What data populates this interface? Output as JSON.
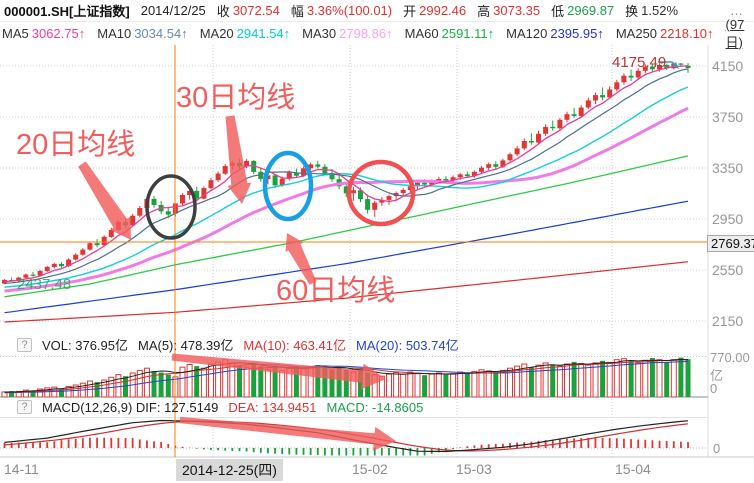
{
  "header": {
    "symbol": "000001.SH[上证指数]",
    "date": "2014/12/25",
    "fields": [
      {
        "label": "收",
        "value": "3072.54",
        "color": "#e03232"
      },
      {
        "label": "幅",
        "value": "3.36%(100.01)",
        "color": "#e03232"
      },
      {
        "label": "开",
        "value": "2992.46",
        "color": "#e03232"
      },
      {
        "label": "高",
        "value": "3073.35",
        "color": "#e03232"
      },
      {
        "label": "低",
        "value": "2969.87",
        "color": "#1ca04a"
      },
      {
        "label": "换",
        "value": "1.52%",
        "color": "#333333"
      }
    ],
    "more": "…"
  },
  "ma_bar": {
    "items": [
      {
        "label": "MA5",
        "value": "3062.75",
        "arrow": "↑",
        "color": "#f03ca0"
      },
      {
        "label": "MA10",
        "value": "3034.54",
        "arrow": "↑",
        "color": "#6b88ad"
      },
      {
        "label": "MA20",
        "value": "2941.54",
        "arrow": "↑",
        "color": "#00cdd4"
      },
      {
        "label": "MA30",
        "value": "2798.86",
        "arrow": "↑",
        "color": "#f8a2ef"
      },
      {
        "label": "MA60",
        "value": "2591.11",
        "arrow": "↑",
        "color": "#16b53c"
      },
      {
        "label": "MA120",
        "value": "2395.95",
        "arrow": "↑",
        "color": "#2431d8"
      },
      {
        "label": "MA250",
        "value": "2218.10",
        "arrow": "↑",
        "color": "#e43030"
      }
    ],
    "period": "(97日)"
  },
  "annotations": {
    "ma20_note": "20日均线",
    "ma30_note": "30日均线",
    "ma60_note": "60日均线",
    "peak_label": "4175.49",
    "low_label": "2437.48",
    "crosshair_price": "2769.37"
  },
  "volume_pane": {
    "help": "?",
    "segments": [
      {
        "text": "VOL: 376.95亿",
        "color": "#222222"
      },
      {
        "text": "MA(5): 478.39亿",
        "color": "#222222"
      },
      {
        "text": "MA(10): 463.41亿",
        "color": "#e03232"
      },
      {
        "text": "MA(20): 503.74亿",
        "color": "#2244cc"
      }
    ],
    "axis_max": "770.00亿",
    "axis_min": "0"
  },
  "macd_pane": {
    "help": "?",
    "segments": [
      {
        "text": "MACD(12,26,9) DIF: 127.5149",
        "color": "#222222"
      },
      {
        "text": "DEA: 134.9451",
        "color": "#e03232"
      },
      {
        "text": "MACD: -14.8605",
        "color": "#1ca04a"
      }
    ],
    "axis_zero": "0"
  },
  "x_axis": {
    "labels": [
      "14-11",
      "2014-12-25(四)",
      "15-02",
      "15-03",
      "15-04"
    ],
    "highlight_index": 1
  },
  "chart_data": {
    "type": "candlestick",
    "ylim": [
      2150,
      4150
    ],
    "y_ticks": [
      4150,
      3750,
      3350,
      2950,
      2550,
      2150
    ],
    "x_labels": [
      "14-11",
      "2014-12-25(四)",
      "15-02",
      "15-03",
      "15-04"
    ],
    "visible_bars": 97,
    "crosshair": {
      "date": "2014-12-25",
      "price_level": 2769.37,
      "bar_index": 24
    },
    "high_label": {
      "value": 4175.49,
      "bar_index": 94
    },
    "low_label": {
      "value": 2437.48,
      "bar_index": 0
    },
    "candles": [
      [
        2443,
        2478,
        2437.48,
        2472
      ],
      [
        2472,
        2492,
        2458,
        2464
      ],
      [
        2464,
        2498,
        2456,
        2490
      ],
      [
        2490,
        2522,
        2482,
        2514
      ],
      [
        2514,
        2536,
        2498,
        2506
      ],
      [
        2506,
        2550,
        2500,
        2542
      ],
      [
        2542,
        2582,
        2534,
        2574
      ],
      [
        2574,
        2606,
        2562,
        2598
      ],
      [
        2598,
        2612,
        2566,
        2580
      ],
      [
        2580,
        2642,
        2574,
        2632
      ],
      [
        2632,
        2682,
        2624,
        2670
      ],
      [
        2670,
        2722,
        2662,
        2710
      ],
      [
        2710,
        2772,
        2702,
        2760
      ],
      [
        2760,
        2792,
        2728,
        2744
      ],
      [
        2744,
        2822,
        2738,
        2810
      ],
      [
        2810,
        2882,
        2802,
        2864
      ],
      [
        2864,
        2942,
        2858,
        2926
      ],
      [
        2926,
        2952,
        2878,
        2900
      ],
      [
        2900,
        2992,
        2894,
        2976
      ],
      [
        2976,
        3052,
        2962,
        3036
      ],
      [
        3036,
        3122,
        3026,
        3108
      ],
      [
        3108,
        3132,
        3038,
        3060
      ],
      [
        3060,
        3092,
        2988,
        3010
      ],
      [
        3010,
        3042,
        2958,
        2984
      ],
      [
        2992.46,
        3073.35,
        2969.87,
        3072.54
      ],
      [
        3072,
        3152,
        3058,
        3138
      ],
      [
        3138,
        3192,
        3102,
        3170
      ],
      [
        3170,
        3202,
        3088,
        3110
      ],
      [
        3110,
        3206,
        3104,
        3192
      ],
      [
        3192,
        3272,
        3182,
        3254
      ],
      [
        3254,
        3322,
        3242,
        3306
      ],
      [
        3306,
        3382,
        3296,
        3366
      ],
      [
        3366,
        3406,
        3332,
        3392
      ],
      [
        3392,
        3422,
        3342,
        3362
      ],
      [
        3362,
        3420,
        3350,
        3406
      ],
      [
        3406,
        3412,
        3302,
        3320
      ],
      [
        3320,
        3352,
        3242,
        3264
      ],
      [
        3264,
        3312,
        3222,
        3292
      ],
      [
        3292,
        3302,
        3192,
        3214
      ],
      [
        3214,
        3282,
        3202,
        3266
      ],
      [
        3266,
        3332,
        3252,
        3314
      ],
      [
        3314,
        3346,
        3272,
        3290
      ],
      [
        3290,
        3362,
        3282,
        3348
      ],
      [
        3348,
        3392,
        3332,
        3378
      ],
      [
        3378,
        3406,
        3346,
        3360
      ],
      [
        3360,
        3382,
        3292,
        3310
      ],
      [
        3310,
        3342,
        3242,
        3262
      ],
      [
        3262,
        3302,
        3182,
        3206
      ],
      [
        3206,
        3242,
        3122,
        3152
      ],
      [
        3152,
        3202,
        3092,
        3176
      ],
      [
        3176,
        3198,
        3082,
        3106
      ],
      [
        3106,
        3142,
        2992,
        3022
      ],
      [
        3022,
        3092,
        2966,
        3078
      ],
      [
        3078,
        3122,
        3052,
        3100
      ],
      [
        3100,
        3142,
        3062,
        3130
      ],
      [
        3130,
        3166,
        3102,
        3154
      ],
      [
        3154,
        3192,
        3132,
        3178
      ],
      [
        3178,
        3222,
        3152,
        3206
      ],
      [
        3206,
        3246,
        3186,
        3234
      ],
      [
        3234,
        3262,
        3202,
        3220
      ],
      [
        3220,
        3260,
        3206,
        3248
      ],
      [
        3248,
        3282,
        3232,
        3264
      ],
      [
        3264,
        3286,
        3236,
        3252
      ],
      [
        3252,
        3292,
        3238,
        3278
      ],
      [
        3278,
        3312,
        3258,
        3300
      ],
      [
        3300,
        3322,
        3272,
        3286
      ],
      [
        3286,
        3332,
        3274,
        3320
      ],
      [
        3320,
        3366,
        3302,
        3352
      ],
      [
        3352,
        3394,
        3332,
        3380
      ],
      [
        3380,
        3402,
        3342,
        3360
      ],
      [
        3360,
        3422,
        3350,
        3410
      ],
      [
        3410,
        3472,
        3400,
        3458
      ],
      [
        3458,
        3522,
        3442,
        3504
      ],
      [
        3504,
        3582,
        3492,
        3562
      ],
      [
        3562,
        3622,
        3532,
        3550
      ],
      [
        3550,
        3642,
        3542,
        3618
      ],
      [
        3618,
        3692,
        3602,
        3672
      ],
      [
        3672,
        3722,
        3642,
        3662
      ],
      [
        3662,
        3742,
        3652,
        3728
      ],
      [
        3728,
        3792,
        3712,
        3772
      ],
      [
        3772,
        3822,
        3742,
        3758
      ],
      [
        3758,
        3842,
        3748,
        3824
      ],
      [
        3824,
        3902,
        3812,
        3880
      ],
      [
        3880,
        3942,
        3852,
        3922
      ],
      [
        3922,
        3982,
        3882,
        3904
      ],
      [
        3904,
        3992,
        3894,
        3966
      ],
      [
        3966,
        4042,
        3952,
        4022
      ],
      [
        4022,
        4092,
        4002,
        4074
      ],
      [
        4074,
        4122,
        4032,
        4060
      ],
      [
        4060,
        4132,
        4042,
        4112
      ],
      [
        4112,
        4162,
        4092,
        4146
      ],
      [
        4146,
        4166,
        4102,
        4124
      ],
      [
        4124,
        4172,
        4106,
        4158
      ],
      [
        4158,
        4168,
        4120,
        4132
      ],
      [
        4132,
        4175.49,
        4124,
        4170
      ],
      [
        4170,
        4174,
        4142,
        4164
      ],
      [
        4152,
        4173,
        4096,
        4134
      ]
    ],
    "volumes": [
      95,
      110,
      105,
      130,
      125,
      150,
      170,
      185,
      160,
      200,
      225,
      260,
      300,
      280,
      320,
      370,
      420,
      390,
      450,
      500,
      540,
      490,
      460,
      420,
      376.95,
      560,
      610,
      580,
      540,
      620,
      660,
      700,
      640,
      600,
      560,
      640,
      580,
      520,
      560,
      500,
      540,
      580,
      530,
      560,
      600,
      550,
      520,
      560,
      510,
      470,
      500,
      460,
      420,
      390,
      430,
      460,
      430,
      470,
      440,
      410,
      430,
      450,
      420,
      440,
      470,
      450,
      480,
      510,
      490,
      460,
      500,
      540,
      580,
      620,
      560,
      600,
      640,
      610,
      580,
      620,
      660,
      630,
      600,
      640,
      680,
      650,
      700,
      720,
      680,
      640,
      690,
      730,
      700,
      660,
      700,
      740,
      710
    ],
    "volume_ylim": [
      0,
      770
    ],
    "ma_long_controls": {
      "ma60": [
        [
          0,
          2340
        ],
        [
          12,
          2440
        ],
        [
          24,
          2591.11
        ],
        [
          40,
          2760
        ],
        [
          60,
          3000
        ],
        [
          80,
          3240
        ],
        [
          96,
          3445
        ]
      ],
      "ma120": [
        [
          0,
          2215
        ],
        [
          24,
          2395.95
        ],
        [
          48,
          2600
        ],
        [
          72,
          2840
        ],
        [
          96,
          3090
        ]
      ],
      "ma250": [
        [
          0,
          2142
        ],
        [
          24,
          2218.1
        ],
        [
          48,
          2330
        ],
        [
          72,
          2470
        ],
        [
          96,
          2615
        ]
      ]
    },
    "macd_dif_controls": [
      [
        0,
        35
      ],
      [
        6,
        62
      ],
      [
        12,
        112
      ],
      [
        18,
        158
      ],
      [
        22,
        172
      ],
      [
        26,
        168
      ],
      [
        30,
        160
      ],
      [
        34,
        148
      ],
      [
        38,
        128
      ],
      [
        44,
        95
      ],
      [
        50,
        42
      ],
      [
        55,
        2
      ],
      [
        58,
        -20
      ],
      [
        62,
        -22
      ],
      [
        66,
        -10
      ],
      [
        70,
        4
      ],
      [
        74,
        26
      ],
      [
        78,
        56
      ],
      [
        82,
        88
      ],
      [
        86,
        118
      ],
      [
        90,
        142
      ],
      [
        94,
        162
      ],
      [
        96,
        170
      ]
    ],
    "colors": {
      "up": "#e23535",
      "down": "#1ca23c",
      "ma5": "#ef3a96",
      "ma10": "#4a708c",
      "ma20": "#12cfd8",
      "ma30": "#f07ae6",
      "ma60": "#2ecc40",
      "ma120": "#1a3fd4",
      "ma250": "#dd2c2c",
      "crosshair": "#ff7e00",
      "grid": "#cfcfcf",
      "annotation": "#f15b5b",
      "circle_black": "#3f3f3f",
      "circle_blue": "#179fe4",
      "circle_red": "#f15050",
      "peak_pointer": "#3a9ab0",
      "vol_ma5": "#222222",
      "vol_ma10": "#d03030",
      "vol_ma20": "#2244cc",
      "dif_line": "#222222",
      "dea_line": "#d03030"
    }
  }
}
